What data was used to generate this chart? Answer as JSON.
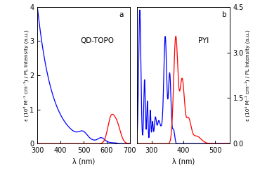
{
  "panel_a_label": "a",
  "panel_b_label": "b",
  "label_a": "QD-TOPO",
  "label_b": "PYI",
  "ylabel_left_a": "ε (10⁶ M⁻¹ cm⁻¹) / PL Intensity (a.u.)",
  "ylabel_right_b": "ε (10⁴ M⁻¹ cm⁻¹) / PL Intensity (a.u.)",
  "xlabel": "λ (nm)",
  "xlim_a": [
    300,
    700
  ],
  "xlim_b": [
    255,
    545
  ],
  "ylim_a": [
    0,
    4.0
  ],
  "ylim_b": [
    0,
    4.5
  ],
  "yticks_a": [
    0,
    1.0,
    2.0,
    3.0,
    4.0
  ],
  "yticks_b": [
    0,
    1.5,
    3.0,
    4.5
  ],
  "xticks_a": [
    300,
    400,
    500,
    600,
    700
  ],
  "xticks_b": [
    300,
    400,
    500
  ],
  "blue_color": "#0000ff",
  "red_color": "#ff0000",
  "bg_color": "#ffffff",
  "border_color": "#000000",
  "font_size": 7,
  "label_font_size": 7.5
}
